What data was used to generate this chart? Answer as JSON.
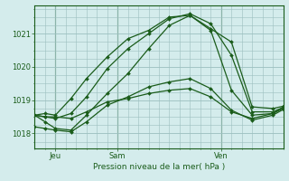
{
  "background_color": "#d4ecec",
  "grid_color": "#9bbfbf",
  "line_color": "#1a5c1a",
  "xlabel": "Pression niveau de la mer( hPa )",
  "xtick_labels": [
    "Jeu",
    "Sam",
    "Ven"
  ],
  "ytick_labels": [
    "1018",
    "1019",
    "1020",
    "1021"
  ],
  "ytick_values": [
    1018,
    1019,
    1020,
    1021
  ],
  "ylim": [
    1017.55,
    1021.85
  ],
  "xlim": [
    0,
    48
  ],
  "xtick_positions": [
    4,
    16,
    36
  ],
  "series": [
    {
      "x": [
        0,
        2,
        4,
        7,
        10,
        14,
        18,
        22,
        26,
        30,
        34,
        38,
        42,
        46,
        48
      ],
      "y": [
        1018.55,
        1018.6,
        1018.55,
        1019.05,
        1019.65,
        1020.3,
        1020.85,
        1021.1,
        1021.5,
        1021.55,
        1021.15,
        1020.75,
        1018.8,
        1018.75,
        1018.82
      ]
    },
    {
      "x": [
        0,
        2,
        4,
        7,
        10,
        14,
        18,
        22,
        26,
        30,
        34,
        38,
        42,
        46,
        48
      ],
      "y": [
        1018.55,
        1018.5,
        1018.45,
        1018.6,
        1019.1,
        1019.95,
        1020.55,
        1021.0,
        1021.45,
        1021.6,
        1021.3,
        1020.35,
        1018.65,
        1018.65,
        1018.78
      ]
    },
    {
      "x": [
        0,
        2,
        4,
        7,
        10,
        14,
        18,
        22,
        26,
        30,
        34,
        38,
        42,
        46,
        48
      ],
      "y": [
        1018.55,
        1018.35,
        1018.15,
        1018.1,
        1018.55,
        1019.2,
        1019.8,
        1020.55,
        1021.25,
        1021.55,
        1021.1,
        1019.3,
        1018.55,
        1018.6,
        1018.75
      ]
    },
    {
      "x": [
        0,
        2,
        4,
        7,
        10,
        14,
        18,
        22,
        26,
        30,
        34,
        38,
        42,
        46,
        48
      ],
      "y": [
        1018.2,
        1018.15,
        1018.1,
        1018.05,
        1018.35,
        1018.85,
        1019.1,
        1019.4,
        1019.55,
        1019.65,
        1019.35,
        1018.7,
        1018.4,
        1018.55,
        1018.72
      ]
    },
    {
      "x": [
        0,
        2,
        4,
        7,
        10,
        14,
        18,
        22,
        26,
        30,
        34,
        38,
        42,
        46,
        48
      ],
      "y": [
        1018.55,
        1018.5,
        1018.5,
        1018.45,
        1018.65,
        1018.95,
        1019.05,
        1019.2,
        1019.3,
        1019.35,
        1019.1,
        1018.65,
        1018.45,
        1018.6,
        1018.8
      ]
    }
  ],
  "marker": "D",
  "marker_size": 2.0,
  "linewidth": 0.9
}
